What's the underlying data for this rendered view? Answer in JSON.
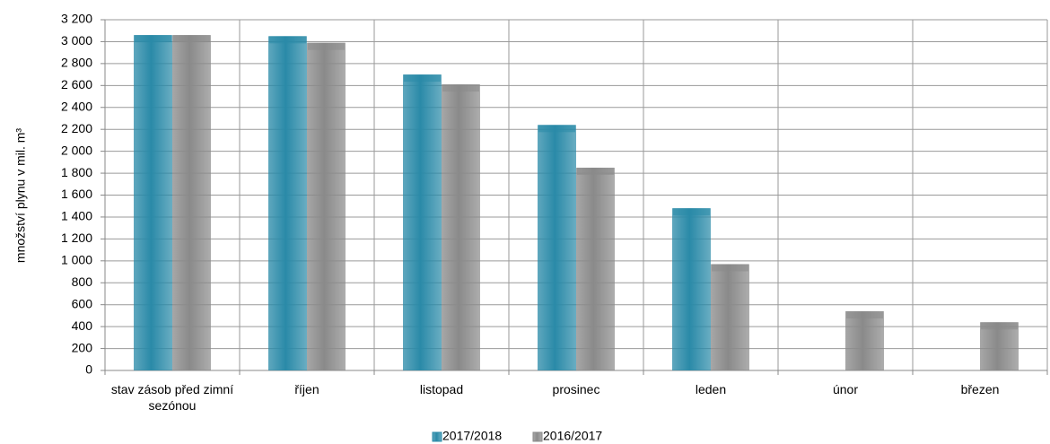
{
  "chart_data": {
    "type": "bar",
    "y_label": "množství plynu v mil. m³",
    "categories": [
      "stav zásob před zimní sezónou",
      "říjen",
      "listopad",
      "prosinec",
      "leden",
      "únor",
      "březen"
    ],
    "series": [
      {
        "name": "2017/2018",
        "color": "#2a8aa8",
        "values": [
          3060,
          3050,
          2700,
          2240,
          1480,
          null,
          null
        ]
      },
      {
        "name": "2016/2017",
        "color": "#8a8a8a",
        "values": [
          3060,
          2990,
          2610,
          1850,
          970,
          540,
          440
        ]
      }
    ],
    "ylim": [
      0,
      3200
    ],
    "yticks": [
      0,
      200,
      400,
      600,
      800,
      {
        "value": 1000,
        "label": "1 000"
      },
      {
        "value": 1200,
        "label": "1 200"
      },
      {
        "value": 1400,
        "label": "1 400"
      },
      {
        "value": 1600,
        "label": "1 600"
      },
      {
        "value": 1800,
        "label": "1 800"
      },
      {
        "value": 2000,
        "label": "2 000"
      },
      {
        "value": 2200,
        "label": "2 200"
      },
      {
        "value": 2400,
        "label": "2 400"
      },
      {
        "value": 2600,
        "label": "2 600"
      },
      {
        "value": 2800,
        "label": "2 800"
      },
      {
        "value": 3000,
        "label": "3 000"
      },
      {
        "value": 3200,
        "label": "3 200"
      }
    ],
    "grid": true,
    "legend": "bottom"
  }
}
